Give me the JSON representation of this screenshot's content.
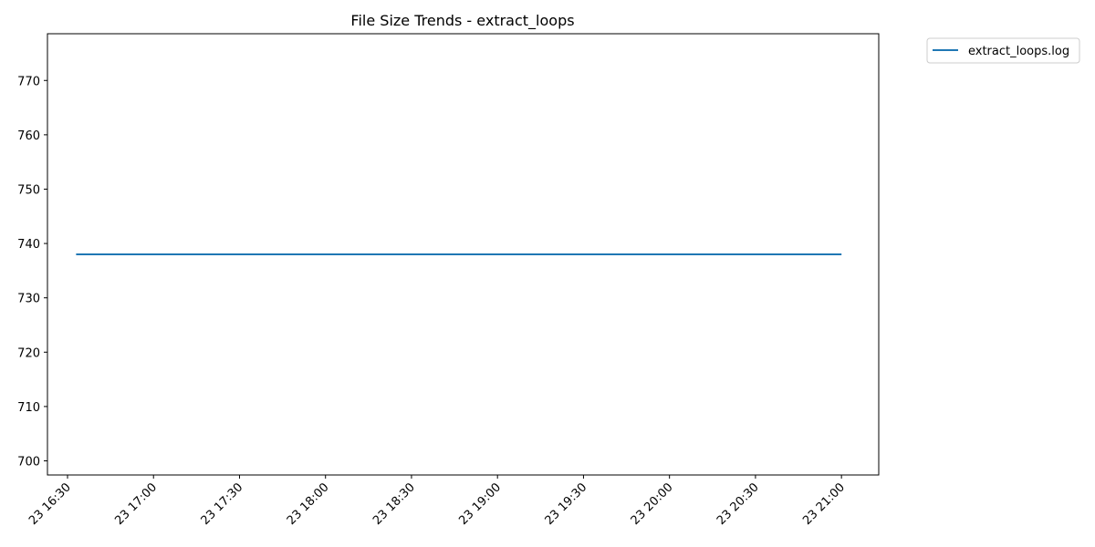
{
  "chart_data": {
    "type": "line",
    "title": "File Size Trends - extract_loops",
    "xlabel": "",
    "ylabel": "",
    "x_tick_labels": [
      "23 16:30",
      "23 17:00",
      "23 17:30",
      "23 18:00",
      "23 18:30",
      "23 19:00",
      "23 19:30",
      "23 20:00",
      "23 20:30",
      "23 21:00"
    ],
    "y_tick_labels": [
      "700",
      "710",
      "720",
      "730",
      "740",
      "750",
      "760",
      "770"
    ],
    "xlim": [
      "23 16:23",
      "23 21:13"
    ],
    "ylim": [
      697.4,
      778.6
    ],
    "grid": false,
    "legend_position": "outside-top-right",
    "series": [
      {
        "name": "extract_loops.log",
        "color": "#1f77b4",
        "x": [
          "23 16:33",
          "23 21:00"
        ],
        "y": [
          738,
          738
        ]
      }
    ]
  }
}
